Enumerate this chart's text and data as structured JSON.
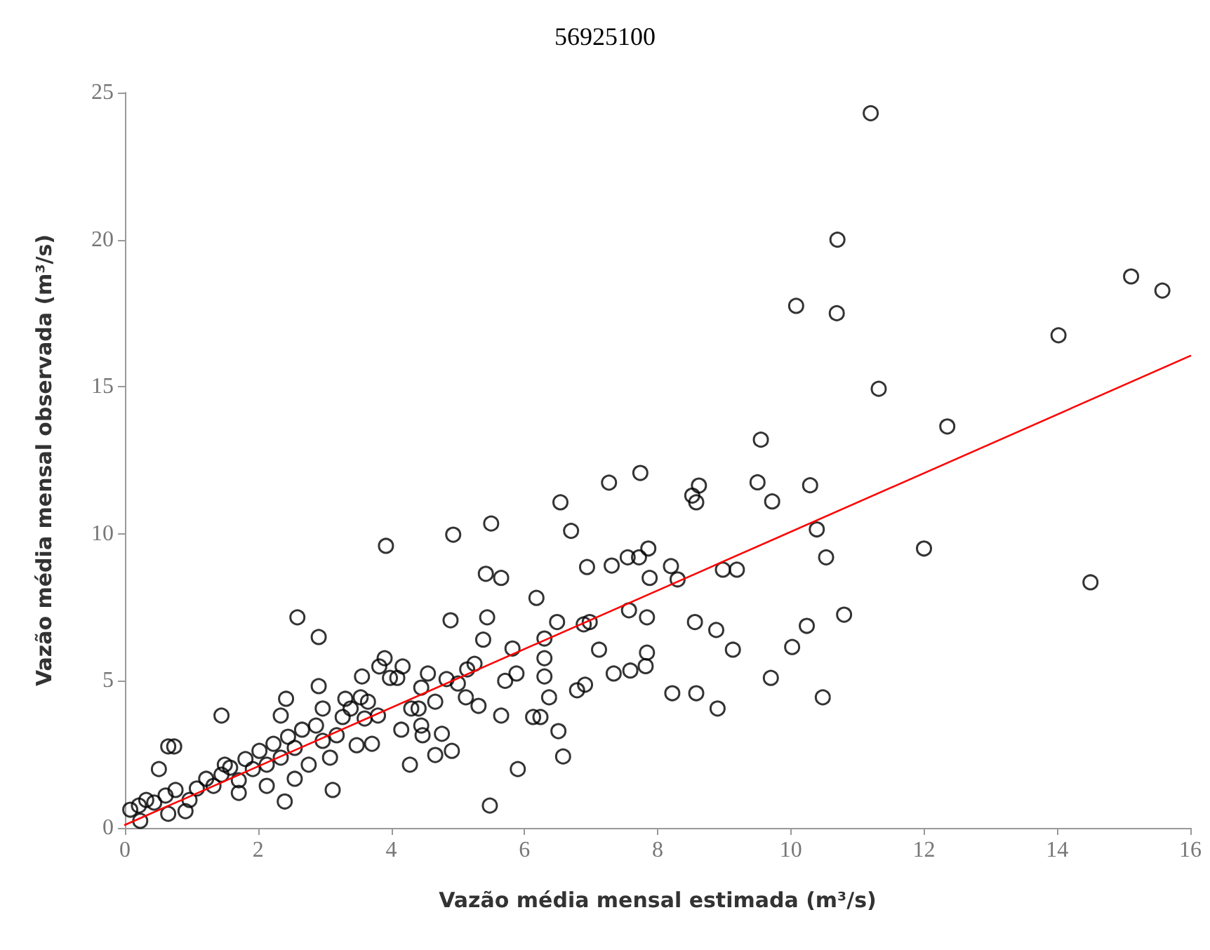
{
  "chart_data": {
    "type": "scatter",
    "title": "56925100",
    "xlabel": "Vazão média mensal estimada (m³/s)",
    "ylabel": "Vazão média mensal observada (m³/s)",
    "xlim": [
      0,
      16
    ],
    "xticks": [
      0,
      2,
      4,
      6,
      8,
      10,
      12,
      14,
      16
    ],
    "ylim": [
      0,
      25
    ],
    "yticks": [
      0,
      5,
      10,
      15,
      20,
      25
    ],
    "grid": false,
    "series": [
      {
        "type": "scatter",
        "marker": "circle",
        "color": "#000000",
        "x": [
          11.2,
          15.11,
          15.58,
          14.02,
          14.5,
          12.35,
          12.0,
          11.32,
          10.08,
          10.7,
          10.69,
          9.55,
          9.5,
          9.72,
          10.29,
          10.39,
          10.53,
          10.8,
          10.24,
          10.02,
          9.7,
          10.48,
          8.98,
          9.19,
          9.13,
          8.9,
          8.88,
          8.58,
          8.62,
          8.52,
          8.2,
          8.3,
          7.88,
          7.86,
          7.72,
          7.74,
          7.27,
          7.31,
          7.55,
          7.57,
          7.84,
          7.84,
          7.82,
          7.59,
          7.34,
          7.12,
          8.56,
          8.22,
          8.58,
          6.7,
          6.54,
          6.94,
          6.98,
          6.89,
          6.49,
          6.79,
          6.91,
          6.51,
          6.58,
          6.37,
          6.3,
          6.3,
          6.3,
          6.18,
          6.24,
          6.13,
          5.9,
          5.65,
          5.5,
          5.42,
          5.44,
          5.38,
          5.25,
          5.31,
          5.48,
          4.93,
          4.89,
          5.14,
          5.0,
          5.12,
          4.76,
          4.91,
          4.66,
          4.83,
          5.71,
          5.82,
          5.88,
          5.65,
          3.92,
          3.9,
          3.82,
          4.09,
          4.17,
          3.98,
          4.28,
          3.71,
          3.48,
          3.31,
          3.56,
          3.54,
          3.27,
          3.6,
          3.8,
          4.15,
          4.45,
          4.41,
          4.3,
          4.47,
          2.59,
          2.91,
          2.91,
          2.42,
          1.45,
          0.74,
          0.65,
          0.51,
          2.4,
          3.12,
          0.08,
          0.21,
          0.32,
          0.44,
          0.61,
          0.76,
          0.91,
          0.97,
          1.08,
          1.22,
          1.33,
          1.45,
          1.58,
          1.71,
          1.81,
          1.92,
          2.02,
          2.13,
          2.23,
          2.34,
          2.45,
          2.55,
          2.66,
          2.76,
          2.87,
          2.97,
          3.08,
          3.18,
          3.39,
          3.65,
          2.55,
          2.13,
          1.71,
          1.5,
          2.34,
          2.97,
          0.23,
          0.65,
          4.45,
          4.66,
          4.55
        ],
        "values": [
          24.3,
          18.75,
          18.27,
          16.75,
          8.35,
          13.65,
          9.5,
          14.93,
          17.75,
          20.0,
          17.5,
          13.2,
          11.75,
          11.1,
          11.65,
          10.15,
          9.2,
          7.25,
          6.87,
          6.15,
          5.1,
          4.44,
          8.78,
          8.78,
          6.06,
          4.06,
          6.73,
          11.07,
          11.64,
          11.3,
          8.9,
          8.45,
          8.5,
          9.5,
          9.2,
          12.07,
          11.74,
          8.92,
          9.2,
          7.4,
          7.16,
          5.96,
          5.5,
          5.35,
          5.25,
          6.06,
          7.0,
          4.58,
          4.58,
          10.1,
          11.07,
          8.87,
          7.0,
          6.92,
          7.0,
          4.68,
          4.87,
          3.29,
          2.43,
          4.44,
          5.15,
          5.77,
          6.44,
          7.82,
          3.77,
          3.77,
          2.0,
          8.5,
          10.35,
          8.64,
          7.16,
          6.4,
          5.58,
          4.15,
          0.76,
          9.97,
          7.06,
          5.39,
          4.91,
          4.44,
          3.2,
          2.62,
          2.48,
          5.06,
          5.0,
          6.1,
          5.25,
          3.82,
          9.59,
          5.77,
          5.49,
          5.1,
          5.49,
          5.1,
          2.15,
          2.86,
          2.81,
          4.39,
          5.15,
          4.44,
          3.77,
          3.72,
          3.82,
          3.34,
          3.48,
          4.06,
          4.06,
          3.15,
          7.16,
          6.49,
          4.82,
          4.39,
          3.82,
          2.77,
          2.77,
          2.0,
          0.9,
          1.29,
          0.62,
          0.76,
          0.95,
          0.86,
          1.1,
          1.29,
          0.57,
          0.95,
          1.34,
          1.67,
          1.43,
          1.81,
          2.05,
          1.62,
          2.34,
          2.0,
          2.62,
          2.15,
          2.86,
          2.39,
          3.1,
          2.72,
          3.34,
          2.15,
          3.48,
          2.96,
          2.39,
          3.15,
          4.06,
          4.29,
          1.67,
          1.43,
          1.19,
          2.15,
          3.82,
          4.06,
          0.24,
          0.48,
          4.77,
          4.29,
          5.25
        ]
      },
      {
        "type": "line",
        "marker": "none",
        "line_style": "solid",
        "color": "#ff0000",
        "x": [
          0,
          16
        ],
        "values": [
          0.1,
          16.05
        ]
      }
    ]
  }
}
